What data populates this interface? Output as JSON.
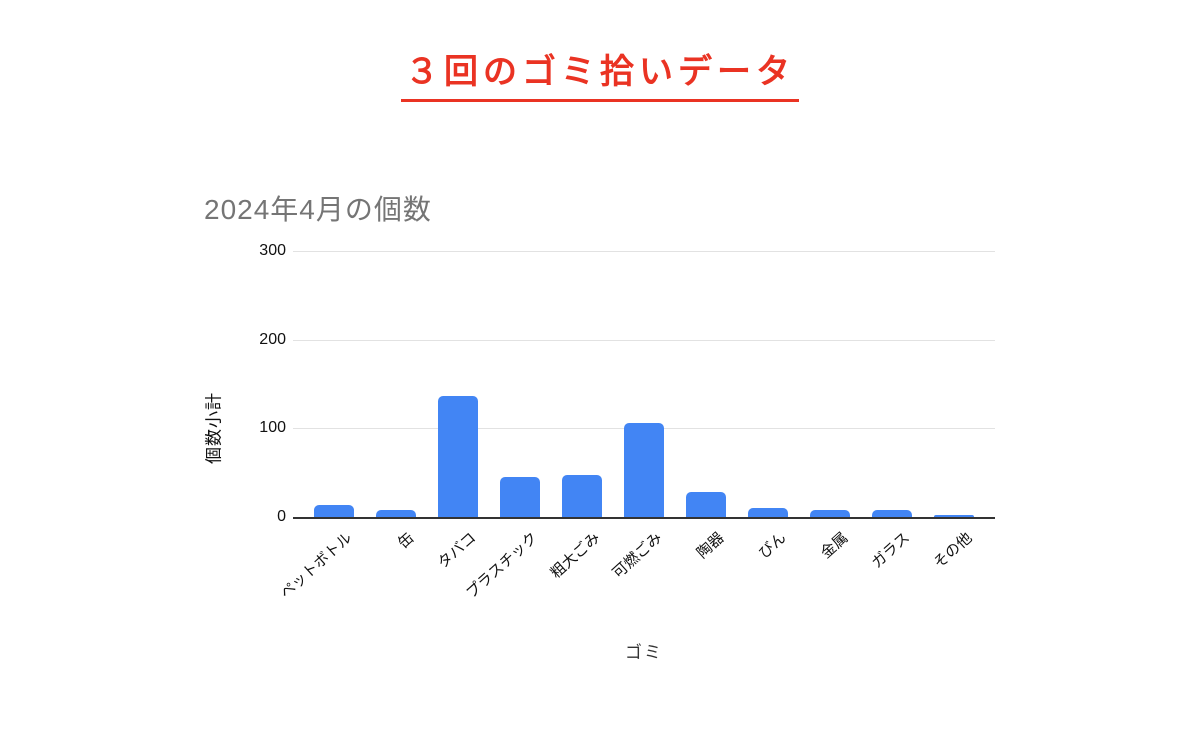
{
  "page": {
    "title": "３回のゴミ拾いデータ",
    "title_color": "#ea3323",
    "background_color": "#ffffff"
  },
  "chart": {
    "bar_color": "#4285f4",
    "gridline_color": "#e2e2e2",
    "axis_line_color": "#333333",
    "title_color": "#757575",
    "tick_text_color": "#111111"
  },
  "chart_data": {
    "type": "bar",
    "title": "2024年4月の個数",
    "xlabel": "ゴミ",
    "ylabel": "個数小計",
    "categories": [
      "ペットボトル",
      "缶",
      "タバコ",
      "プラスチック",
      "粗大ごみ",
      "可燃ごみ",
      "陶器",
      "びん",
      "金属",
      "ガラス",
      "その他"
    ],
    "values": [
      13,
      8,
      136,
      45,
      47,
      106,
      28,
      10,
      8,
      8,
      2
    ],
    "ylim": [
      0,
      300
    ],
    "yticks": [
      0,
      100,
      200,
      300
    ],
    "grid": true,
    "legend": false
  }
}
